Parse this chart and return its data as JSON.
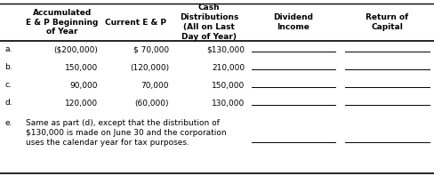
{
  "col_headers": [
    "",
    "Accumulated\nE & P Beginning\nof Year",
    "Current E & P",
    "Cash\nDistributions\n(All on Last\nDay of Year)",
    "Dividend\nIncome",
    "Return of\nCapital"
  ],
  "rows": [
    [
      "a.",
      "($200,000)",
      "$ 70,000",
      "$130,000"
    ],
    [
      "b.",
      "150,000",
      "(120,000)",
      "210,000"
    ],
    [
      "c.",
      "90,000",
      "70,000",
      "150,000"
    ],
    [
      "d.",
      "120,000",
      "(60,000)",
      "130,000"
    ]
  ],
  "row_e_label": "e.",
  "row_e_line1": "Same as part (d), except that the distribution of",
  "row_e_line2": "$130,000 is made on June 30 and the corporation",
  "row_e_line3": "uses the calendar year for tax purposes.",
  "bg_color": "#ffffff",
  "line_color": "#000000",
  "text_color": "#000000",
  "font_size": 6.5,
  "header_font_size": 6.5
}
